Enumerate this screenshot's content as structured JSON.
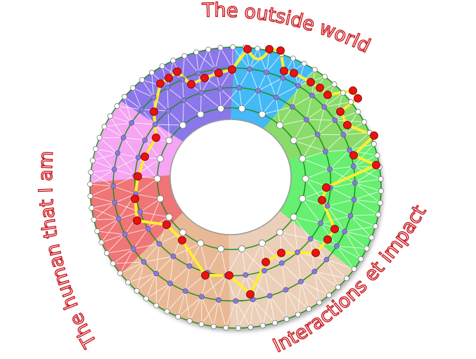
{
  "labels": {
    "top": "The outside world",
    "left": "The human that I am",
    "right": "Interactions et impact"
  },
  "colors": {
    "ring_line": "#1f8f1f",
    "path": "#ffee33",
    "path_node": "#ee1111",
    "ring_node_mid": "#8877ee",
    "label_stroke": "#c8141c"
  },
  "sectors": [
    {
      "color": "#44b9f6"
    },
    {
      "color": "#89dc6a"
    },
    {
      "color": "#66ef70"
    },
    {
      "color": "#ebcfb8"
    },
    {
      "color": "#e9b996"
    },
    {
      "color": "#ef7576"
    },
    {
      "color": "#f5a5f3"
    },
    {
      "color": "#8b77e9"
    }
  ]
}
